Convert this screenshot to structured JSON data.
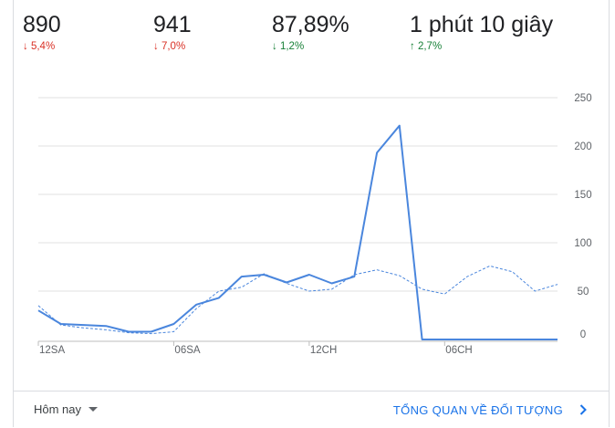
{
  "metrics": [
    {
      "value": "890",
      "delta": "5,4%",
      "direction": "down",
      "arrow": "↓"
    },
    {
      "value": "941",
      "delta": "7,0%",
      "direction": "down",
      "arrow": "↓"
    },
    {
      "value": "87,89%",
      "delta": "1,2%",
      "direction": "down_good",
      "arrow": "↓"
    },
    {
      "value": "1 phút 10 giây",
      "delta": "2,7%",
      "direction": "up",
      "arrow": "↑"
    }
  ],
  "footer": {
    "range_label": "Hôm nay",
    "overview_label": "TỔNG QUAN VỀ ĐỐI TƯỢNG"
  },
  "colors": {
    "primary_line": "#4a86dd",
    "compare_line": "#4a86dd",
    "grid": "#e0e0e0",
    "axis_text": "#5f6368",
    "down": "#d93025",
    "up": "#188038"
  },
  "chart_data": {
    "type": "line",
    "x_tick_labels": [
      "12SA",
      "06SA",
      "12CH",
      "06CH"
    ],
    "x_tick_indices": [
      0,
      6,
      12,
      18
    ],
    "y_ticks": [
      0,
      50,
      100,
      150,
      200,
      250
    ],
    "ylim": [
      0,
      250
    ],
    "grid": true,
    "series": [
      {
        "style": "solid",
        "values": [
          30,
          16,
          15,
          14,
          8,
          8,
          16,
          36,
          43,
          65,
          67,
          59,
          67,
          58,
          65,
          193,
          221,
          0,
          0,
          0,
          0,
          0,
          0,
          0
        ]
      },
      {
        "style": "dashed",
        "values": [
          35,
          15,
          12,
          10,
          7,
          6,
          8,
          32,
          50,
          54,
          68,
          58,
          50,
          52,
          67,
          72,
          66,
          52,
          47,
          65,
          76,
          70,
          50,
          57
        ]
      }
    ]
  }
}
